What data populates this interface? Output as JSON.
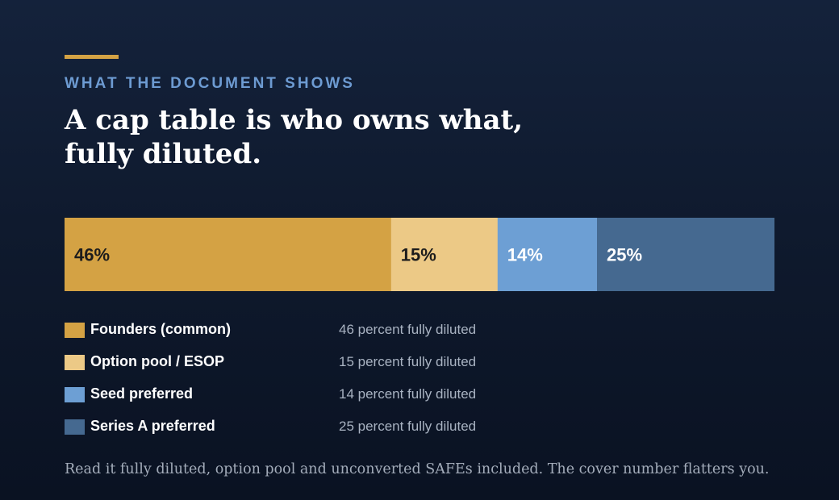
{
  "header": {
    "eyebrow": "WHAT THE DOCUMENT SHOWS",
    "title_line1": "A cap table is who owns what,",
    "title_line2": "fully diluted."
  },
  "chart_data": {
    "type": "bar",
    "orientation": "horizontal-stacked",
    "unit": "percent fully diluted",
    "total": 100,
    "series": [
      {
        "name": "Founders (common)",
        "value": 46,
        "label": "46%",
        "description": "46 percent fully diluted",
        "color": "#d4a244",
        "label_color": "#1c1c1c"
      },
      {
        "name": "Option pool / ESOP",
        "value": 15,
        "label": "15%",
        "description": "15 percent fully diluted",
        "color": "#ecc986",
        "label_color": "#1c1c1c"
      },
      {
        "name": "Seed preferred",
        "value": 14,
        "label": "14%",
        "description": "14 percent fully diluted",
        "color": "#6d9fd4",
        "label_color": "#ffffff"
      },
      {
        "name": "Series A preferred",
        "value": 25,
        "label": "25%",
        "description": "25 percent fully diluted",
        "color": "#456990",
        "label_color": "#ffffff"
      }
    ]
  },
  "footnote": "Read it fully diluted, option pool and unconverted SAFEs included. The cover number flatters you."
}
